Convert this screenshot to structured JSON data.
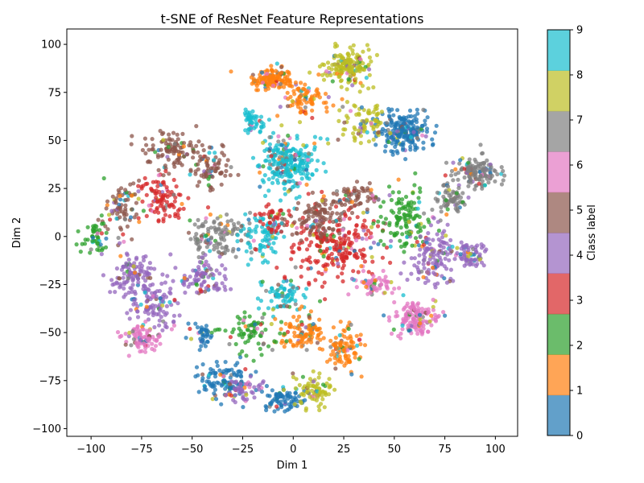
{
  "chart_data": {
    "type": "scatter",
    "title": "t-SNE of ResNet Feature Representations",
    "xlabel": "Dim 1",
    "ylabel": "Dim 2",
    "xlim": [
      -112,
      111
    ],
    "ylim": [
      -104,
      108
    ],
    "x_ticks": [
      -100,
      -75,
      -50,
      -25,
      0,
      25,
      50,
      75,
      100
    ],
    "y_ticks": [
      -100,
      -75,
      -50,
      -25,
      0,
      25,
      50,
      75,
      100
    ],
    "grid": false,
    "colorbar": {
      "label": "Class label",
      "ticks": [
        0,
        1,
        2,
        3,
        4,
        5,
        6,
        7,
        8,
        9
      ],
      "colors": [
        "#1f77b4",
        "#ff7f0e",
        "#2ca02c",
        "#d62728",
        "#9467bd",
        "#8c564b",
        "#e377c2",
        "#7f7f7f",
        "#bcbd22",
        "#17becf"
      ]
    },
    "clusters": [
      {
        "class": 1,
        "cx": -10,
        "cy": 82,
        "rx": 9,
        "ry": 5,
        "n": 140
      },
      {
        "class": 8,
        "cx": 28,
        "cy": 88,
        "rx": 10,
        "ry": 8,
        "n": 170
      },
      {
        "class": 1,
        "cx": 5,
        "cy": 72,
        "rx": 10,
        "ry": 8,
        "n": 90
      },
      {
        "class": 9,
        "cx": -3,
        "cy": 38,
        "rx": 12,
        "ry": 12,
        "n": 260
      },
      {
        "class": 9,
        "cx": -20,
        "cy": 60,
        "rx": 6,
        "ry": 5,
        "n": 50
      },
      {
        "class": 0,
        "cx": 55,
        "cy": 55,
        "rx": 12,
        "ry": 10,
        "n": 220
      },
      {
        "class": 8,
        "cx": 35,
        "cy": 60,
        "rx": 10,
        "ry": 10,
        "n": 80
      },
      {
        "class": 7,
        "cx": 90,
        "cy": 33,
        "rx": 10,
        "ry": 7,
        "n": 150
      },
      {
        "class": 7,
        "cx": 78,
        "cy": 20,
        "rx": 8,
        "ry": 8,
        "n": 70
      },
      {
        "class": 3,
        "cx": 20,
        "cy": -5,
        "rx": 20,
        "ry": 18,
        "n": 260
      },
      {
        "class": 5,
        "cx": 12,
        "cy": 10,
        "rx": 12,
        "ry": 10,
        "n": 110
      },
      {
        "class": 2,
        "cx": 55,
        "cy": 10,
        "rx": 12,
        "ry": 15,
        "n": 130
      },
      {
        "class": 4,
        "cx": 70,
        "cy": -10,
        "rx": 12,
        "ry": 14,
        "n": 140
      },
      {
        "class": 6,
        "cx": 60,
        "cy": -42,
        "rx": 9,
        "ry": 8,
        "n": 150
      },
      {
        "class": 6,
        "cx": 40,
        "cy": -25,
        "rx": 10,
        "ry": 6,
        "n": 60
      },
      {
        "class": 4,
        "cx": 88,
        "cy": -10,
        "rx": 6,
        "ry": 8,
        "n": 60
      },
      {
        "class": 5,
        "cx": -60,
        "cy": 45,
        "rx": 12,
        "ry": 8,
        "n": 110
      },
      {
        "class": 3,
        "cx": -65,
        "cy": 20,
        "rx": 8,
        "ry": 12,
        "n": 100
      },
      {
        "class": 5,
        "cx": -85,
        "cy": 15,
        "rx": 8,
        "ry": 12,
        "n": 80
      },
      {
        "class": 2,
        "cx": -98,
        "cy": 0,
        "rx": 5,
        "ry": 8,
        "n": 50
      },
      {
        "class": 4,
        "cx": -80,
        "cy": -20,
        "rx": 12,
        "ry": 10,
        "n": 120
      },
      {
        "class": 4,
        "cx": -68,
        "cy": -35,
        "rx": 12,
        "ry": 10,
        "n": 100
      },
      {
        "class": 6,
        "cx": -75,
        "cy": -53,
        "rx": 8,
        "ry": 6,
        "n": 90
      },
      {
        "class": 5,
        "cx": -40,
        "cy": 35,
        "rx": 8,
        "ry": 10,
        "n": 80
      },
      {
        "class": 7,
        "cx": -38,
        "cy": 0,
        "rx": 12,
        "ry": 10,
        "n": 120
      },
      {
        "class": 4,
        "cx": -45,
        "cy": -20,
        "rx": 10,
        "ry": 10,
        "n": 90
      },
      {
        "class": 9,
        "cx": -15,
        "cy": 0,
        "rx": 10,
        "ry": 12,
        "n": 90
      },
      {
        "class": 9,
        "cx": -5,
        "cy": -30,
        "rx": 10,
        "ry": 8,
        "n": 80
      },
      {
        "class": 1,
        "cx": 5,
        "cy": -50,
        "rx": 10,
        "ry": 8,
        "n": 100
      },
      {
        "class": 1,
        "cx": 25,
        "cy": -58,
        "rx": 8,
        "ry": 10,
        "n": 100
      },
      {
        "class": 2,
        "cx": -20,
        "cy": -50,
        "rx": 12,
        "ry": 10,
        "n": 80
      },
      {
        "class": 0,
        "cx": -35,
        "cy": -75,
        "rx": 12,
        "ry": 8,
        "n": 110
      },
      {
        "class": 0,
        "cx": -45,
        "cy": -52,
        "rx": 5,
        "ry": 6,
        "n": 40
      },
      {
        "class": 0,
        "cx": -5,
        "cy": -85,
        "rx": 10,
        "ry": 6,
        "n": 80
      },
      {
        "class": 8,
        "cx": 10,
        "cy": -80,
        "rx": 10,
        "ry": 8,
        "n": 80
      },
      {
        "class": 4,
        "cx": -25,
        "cy": -80,
        "rx": 8,
        "ry": 6,
        "n": 50
      },
      {
        "class": 3,
        "cx": -10,
        "cy": 10,
        "rx": 6,
        "ry": 8,
        "n": 40
      },
      {
        "class": 5,
        "cx": 30,
        "cy": 20,
        "rx": 10,
        "ry": 8,
        "n": 70
      }
    ]
  }
}
